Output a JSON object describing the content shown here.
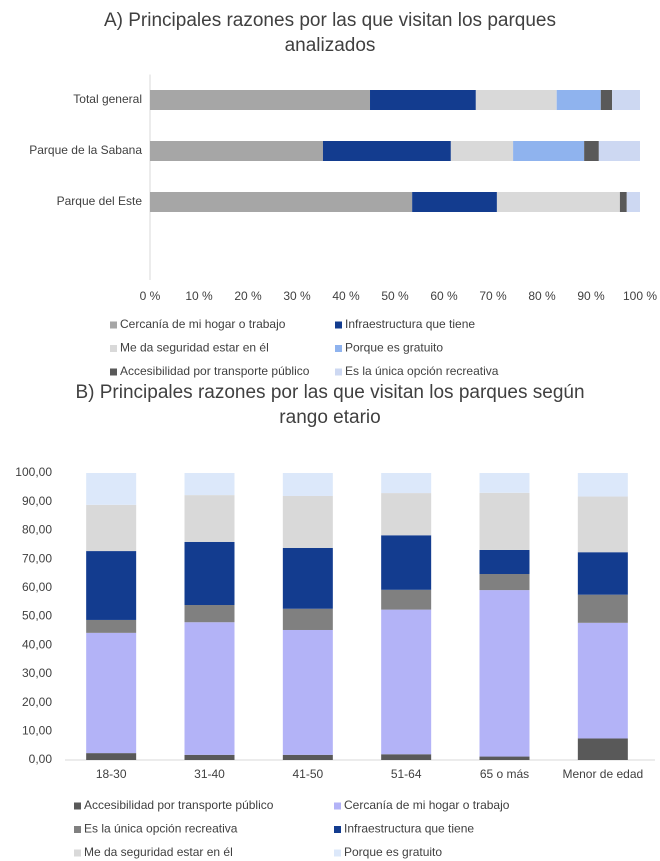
{
  "chart_data": [
    {
      "type": "bar",
      "orientation": "horizontal",
      "stacked": true,
      "title": "A) Principales razones por las que visitan los parques analizados",
      "categories": [
        "Total general",
        "Parque de la Sabana",
        "Parque del Este"
      ],
      "series": [
        {
          "name": "Cercanía de mi hogar o trabajo",
          "color": "#a6a6a6",
          "values": [
            44.9,
            35.3,
            53.5
          ]
        },
        {
          "name": "Infraestructura que tiene",
          "color": "#133c8f",
          "values": [
            21.6,
            26.1,
            17.3
          ]
        },
        {
          "name": "Me da seguridad estar en él",
          "color": "#d9d9d9",
          "values": [
            16.5,
            12.7,
            25.1
          ]
        },
        {
          "name": "Porque es gratuito",
          "color": "#8fb3ee",
          "values": [
            9,
            14.5,
            0
          ]
        },
        {
          "name": "Accesibilidad por transporte público",
          "color": "#595959",
          "values": [
            2.3,
            3,
            1.4
          ]
        },
        {
          "name": "Es la única opción recreativa",
          "color": "#cdd8f2",
          "values": [
            5.7,
            8.4,
            2.7
          ]
        }
      ],
      "xlim": [
        0,
        100
      ],
      "xticks": [
        {
          "value": 0,
          "label": "0 %"
        },
        {
          "value": 10,
          "label": "10 %"
        },
        {
          "value": 20,
          "label": "20 %"
        },
        {
          "value": 30,
          "label": "30 %"
        },
        {
          "value": 40,
          "label": "40 %"
        },
        {
          "value": 50,
          "label": "50 %"
        },
        {
          "value": 60,
          "label": "60 %"
        },
        {
          "value": 70,
          "label": "70 %"
        },
        {
          "value": 80,
          "label": "80 %"
        },
        {
          "value": 90,
          "label": "90 %"
        },
        {
          "value": 100,
          "label": "100 %"
        }
      ],
      "grid": false
    },
    {
      "type": "bar",
      "orientation": "vertical",
      "stacked": true,
      "title": "B) Principales razones por las que visitan los parques según rango etario",
      "categories": [
        "18-30",
        "31-40",
        "41-50",
        "51-64",
        "65 o más",
        "Menor de edad"
      ],
      "series": [
        {
          "name": "Accesibilidad por transporte público",
          "color": "#595959",
          "values": [
            2.4,
            1.8,
            1.8,
            2,
            1.2,
            7.5
          ]
        },
        {
          "name": "Cercanía de mi hogar o trabajo",
          "color": "#b3b3f7",
          "values": [
            41.9,
            46.2,
            43.5,
            50.4,
            58,
            40.3
          ]
        },
        {
          "name": "Es la única opción recreativa",
          "color": "#808080",
          "values": [
            4.5,
            6,
            7.4,
            6.9,
            5.6,
            9.8
          ]
        },
        {
          "name": "Infraestructura que tiene",
          "color": "#133c8f",
          "values": [
            24,
            22,
            21.2,
            19,
            8.4,
            14.8
          ]
        },
        {
          "name": "Me da seguridad estar en él",
          "color": "#d9d9d9",
          "values": [
            16.1,
            16.3,
            18.1,
            14.7,
            19.9,
            19.4
          ]
        },
        {
          "name": "Porque es gratuito",
          "color": "#dce8fa",
          "values": [
            11.1,
            7.7,
            8,
            7,
            6.9,
            8.2
          ]
        }
      ],
      "ylim": [
        0,
        100
      ],
      "yticks": [
        {
          "value": 0,
          "label": "0,00"
        },
        {
          "value": 10,
          "label": "10,00"
        },
        {
          "value": 20,
          "label": "20,00"
        },
        {
          "value": 30,
          "label": "30,00"
        },
        {
          "value": 40,
          "label": "40,00"
        },
        {
          "value": 50,
          "label": "50,00"
        },
        {
          "value": 60,
          "label": "60,00"
        },
        {
          "value": 70,
          "label": "70,00"
        },
        {
          "value": 80,
          "label": "80,00"
        },
        {
          "value": 90,
          "label": "90,00"
        },
        {
          "value": 100,
          "label": "100,00"
        }
      ],
      "grid": false
    }
  ]
}
